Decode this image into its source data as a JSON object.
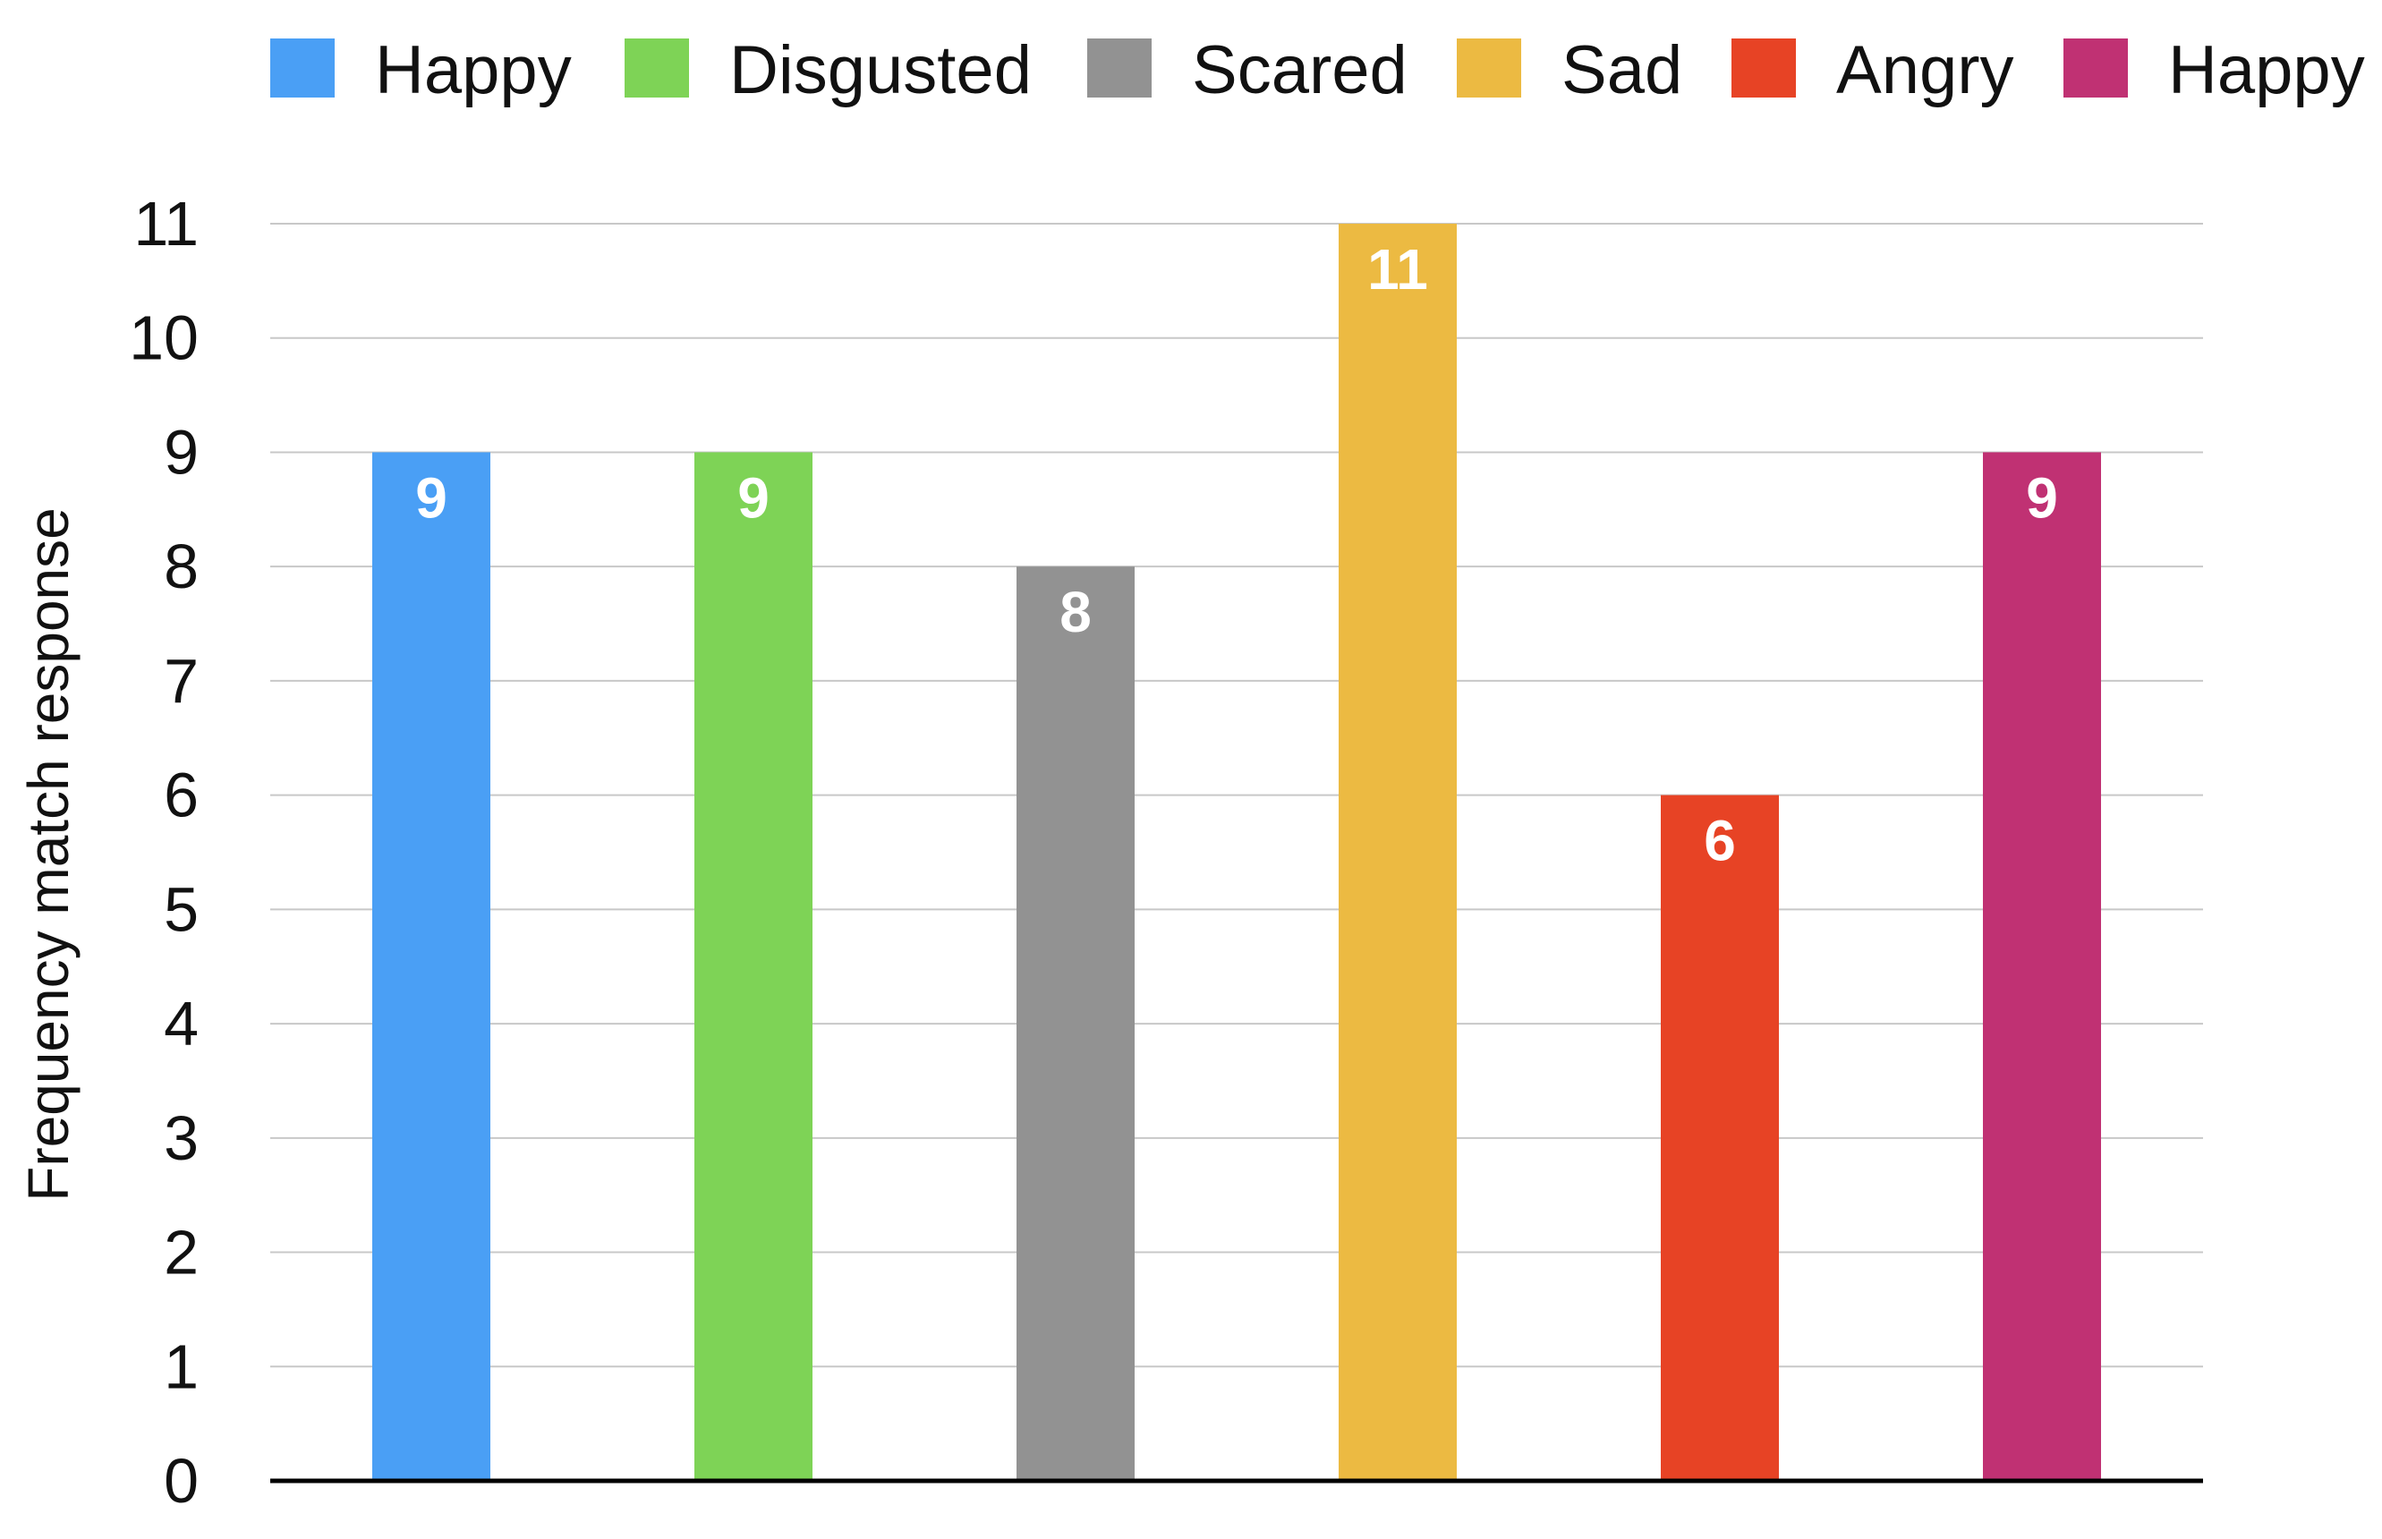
{
  "chart_data": {
    "type": "bar",
    "title": "",
    "xlabel": "",
    "ylabel": "Frequency match response",
    "ylim": [
      0,
      11
    ],
    "y_ticks": [
      "0",
      "1",
      "2",
      "3",
      "4",
      "5",
      "6",
      "7",
      "8",
      "9",
      "10",
      "11"
    ],
    "grid": true,
    "legend_position": "top",
    "series": [
      {
        "name": "Happy",
        "value": 9,
        "label": "9",
        "color": "#4A9FF5"
      },
      {
        "name": "Disgusted",
        "value": 9,
        "label": "9",
        "color": "#7ED356"
      },
      {
        "name": "Scared",
        "value": 8,
        "label": "8",
        "color": "#929292"
      },
      {
        "name": "Sad",
        "value": 11,
        "label": "11",
        "color": "#ECBA42"
      },
      {
        "name": "Angry",
        "value": 6,
        "label": "6",
        "color": "#E74325"
      },
      {
        "name": "Happy",
        "value": 9,
        "label": "9",
        "color": "#C03173"
      }
    ]
  }
}
